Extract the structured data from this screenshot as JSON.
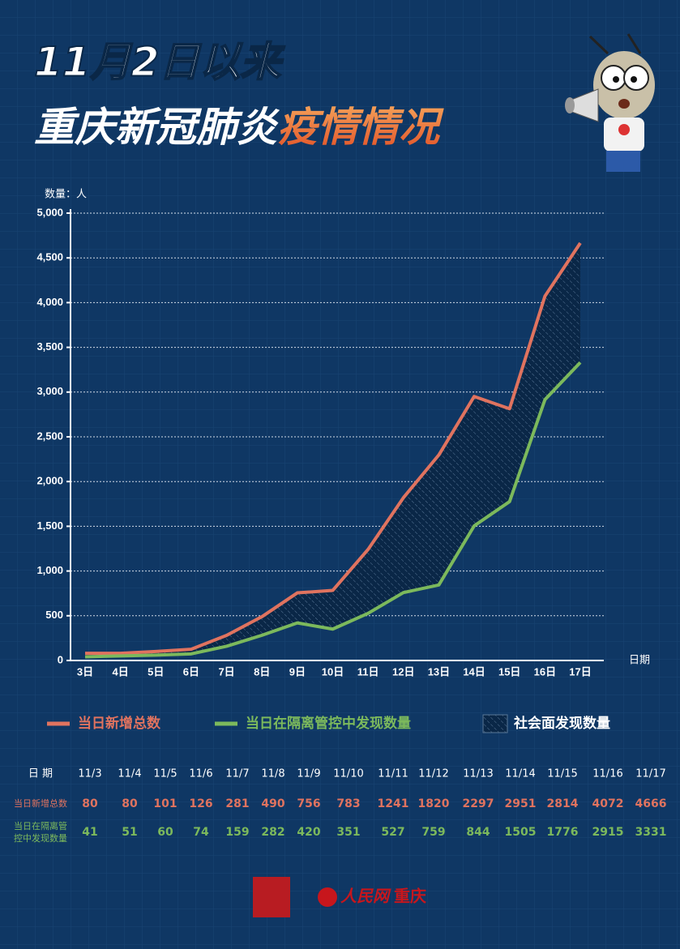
{
  "title_line1": "11月2日以来",
  "title_line2_a": "重庆新冠肺炎",
  "title_line2_b": "疫情情况",
  "chart_data": {
    "type": "line",
    "y_axis_label": "数量：人",
    "x_axis_label": "日期",
    "categories": [
      "3日",
      "4日",
      "5日",
      "6日",
      "7日",
      "8日",
      "9日",
      "10日",
      "11日",
      "12日",
      "13日",
      "14日",
      "15日",
      "16日",
      "17日"
    ],
    "series": [
      {
        "name": "当日新增总数",
        "color": "#e0735f",
        "values": [
          80,
          80,
          101,
          126,
          281,
          490,
          756,
          783,
          1241,
          1820,
          2297,
          2951,
          2814,
          4072,
          4666
        ]
      },
      {
        "name": "当日在隔离管控中发现数量",
        "color": "#7cb95c",
        "values": [
          41,
          51,
          60,
          74,
          159,
          282,
          420,
          351,
          527,
          759,
          844,
          1505,
          1776,
          2915,
          3331
        ]
      }
    ],
    "area_label": "社会面发现数量",
    "ylim": [
      0,
      5000
    ],
    "yticks": [
      0,
      {
        "value": 500,
        "label": "500"
      },
      {
        "value": 1000,
        "label": "1,000"
      },
      {
        "value": 1500,
        "label": "1,500"
      },
      {
        "value": 2000,
        "label": "2,000"
      },
      {
        "value": 2500,
        "label": "2,500"
      },
      {
        "value": 3000,
        "label": "3,000"
      },
      {
        "value": 3500,
        "label": "3,500"
      },
      {
        "value": 4000,
        "label": "4,000"
      },
      {
        "value": 4500,
        "label": "4,500"
      },
      {
        "value": 5000,
        "label": "5,000"
      }
    ],
    "grid": true
  },
  "table": {
    "header": "日 期",
    "dates": [
      "11/3",
      "11/4",
      "11/5",
      "11/6",
      "11/7",
      "11/8",
      "11/9",
      "11/10",
      "11/11",
      "11/12",
      "11/13",
      "11/14",
      "11/15",
      "11/16",
      "11/17"
    ]
  },
  "footer": {
    "brand": "人民网",
    "city": "重庆"
  }
}
